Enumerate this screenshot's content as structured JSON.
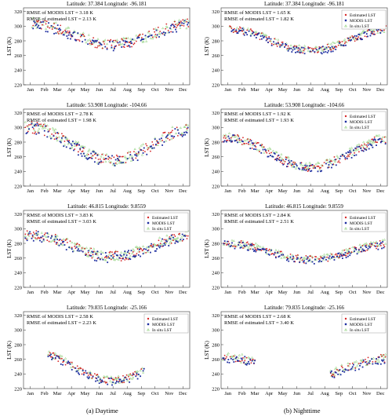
{
  "captions": {
    "left": "(a) Daytime",
    "right": "(b) Nighttime"
  },
  "legend": [
    "Estimated LST",
    "MODIS LST",
    "In situ LST"
  ],
  "colors": {
    "estimated": "#d62728",
    "modis": "#1f2fa0",
    "insitu": "#8fd17c"
  },
  "chart_data": [
    {
      "type": "scatter",
      "title": "Latitude: 37.384  Longitude: -96.181",
      "column": "Daytime",
      "ylabel": "LST (K)",
      "months": [
        "Jan",
        "Feb",
        "Mar",
        "Apr",
        "May",
        "Jun",
        "Jul",
        "Aug",
        "Sep",
        "Oct",
        "Nov",
        "Dec"
      ],
      "xlim": [
        1,
        365
      ],
      "ylim": [
        220,
        325
      ],
      "yticks": [
        220,
        240,
        260,
        280,
        300,
        320
      ],
      "annotations": [
        "RMSE of MODIS LST = 3.18 K",
        "RMSE of estimated LST = 2.13 K"
      ],
      "annotation_pos": "top-left",
      "legend_pos": "top-right",
      "legend_entries": [],
      "series": [
        {
          "name": "Estimated LST",
          "x": [],
          "y": []
        },
        {
          "name": "MODIS LST",
          "x": [],
          "y": []
        },
        {
          "name": "In situ LST",
          "x": [],
          "y": []
        }
      ],
      "doy_range": [
        20,
        362
      ],
      "trend": {
        "peak": 304,
        "amp": 29,
        "noise": 7
      }
    },
    {
      "type": "scatter",
      "title": "Latitude: 37.384  Longitude: -96.181",
      "column": "Nighttime",
      "ylabel": "LST (K)",
      "months": [
        "Jan",
        "Feb",
        "Mar",
        "Apr",
        "May",
        "Jun",
        "Jul",
        "Aug",
        "Sep",
        "Oct",
        "Nov",
        "Dec"
      ],
      "xlim": [
        1,
        365
      ],
      "ylim": [
        220,
        325
      ],
      "yticks": [
        220,
        240,
        260,
        280,
        300,
        320
      ],
      "annotations": [
        "RMSE of MODIS LST = 1.65 K",
        "RMSE of estimated LST = 1.82 K"
      ],
      "annotation_pos": "top-left",
      "legend_pos": "top-right",
      "legend_entries": [
        "Estimated LST",
        "MODIS LST",
        "In situ LST"
      ],
      "series": [
        {
          "name": "Estimated LST",
          "x": [],
          "y": []
        },
        {
          "name": "MODIS LST",
          "x": [],
          "y": []
        },
        {
          "name": "In situ LST",
          "x": [],
          "y": []
        }
      ],
      "doy_range": [
        20,
        362
      ],
      "trend": {
        "peak": 297,
        "amp": 30,
        "noise": 5
      }
    },
    {
      "type": "scatter",
      "title": "Latitude: 53.908  Longitude: -104.66",
      "column": "Daytime",
      "ylabel": "LST (K)",
      "months": [
        "Jan",
        "Feb",
        "Mar",
        "Apr",
        "May",
        "Jun",
        "Jul",
        "Aug",
        "Sep",
        "Oct",
        "Nov",
        "Dec"
      ],
      "xlim": [
        1,
        365
      ],
      "ylim": [
        220,
        325
      ],
      "yticks": [
        220,
        240,
        260,
        280,
        300,
        320
      ],
      "annotations": [
        "RMSE of MODIS LST = 2.78 K",
        "RMSE of estimated LST = 1.98 K"
      ],
      "annotation_pos": "top-left",
      "legend_pos": "top-right",
      "legend_entries": [],
      "series": [
        {
          "name": "Estimated LST",
          "x": [],
          "y": []
        },
        {
          "name": "MODIS LST",
          "x": [],
          "y": []
        },
        {
          "name": "In situ LST",
          "x": [],
          "y": []
        }
      ],
      "doy_range": [
        5,
        362
      ],
      "trend": {
        "peak": 300,
        "amp": 45,
        "noise": 8
      }
    },
    {
      "type": "scatter",
      "title": "Latitude: 53.908  Longitude: -104.66",
      "column": "Nighttime",
      "ylabel": "LST (K)",
      "months": [
        "Jan",
        "Feb",
        "Mar",
        "Apr",
        "May",
        "Jun",
        "Jul",
        "Aug",
        "Sep",
        "Oct",
        "Nov",
        "Dec"
      ],
      "xlim": [
        1,
        365
      ],
      "ylim": [
        220,
        325
      ],
      "yticks": [
        220,
        240,
        260,
        280,
        300,
        320
      ],
      "annotations": [
        "RMSE of MODIS LST = 1.92 K",
        "RMSE of estimated LST = 1.93 K"
      ],
      "annotation_pos": "top-left",
      "legend_pos": "top-right",
      "legend_entries": [
        "Estimated LST",
        "MODIS LST",
        "In situ LST"
      ],
      "series": [
        {
          "name": "Estimated LST",
          "x": [],
          "y": []
        },
        {
          "name": "MODIS LST",
          "x": [],
          "y": []
        },
        {
          "name": "In situ LST",
          "x": [],
          "y": []
        }
      ],
      "doy_range": [
        5,
        362
      ],
      "trend": {
        "peak": 286,
        "amp": 40,
        "noise": 6
      }
    },
    {
      "type": "scatter",
      "title": "Latitude: 46.815  Longitude: 9.8559",
      "column": "Daytime",
      "ylabel": "LST (K)",
      "months": [
        "Jan",
        "Feb",
        "Mar",
        "Apr",
        "May",
        "Jun",
        "Jul",
        "Aug",
        "Sep",
        "Oct",
        "Nov",
        "Dec"
      ],
      "xlim": [
        1,
        365
      ],
      "ylim": [
        220,
        325
      ],
      "yticks": [
        220,
        240,
        260,
        280,
        300,
        320
      ],
      "annotations": [
        "RMSE of MODIS LST = 3.83 K",
        "RMSE of estimated LST = 3.03 K"
      ],
      "annotation_pos": "top-left",
      "legend_pos": "top-right",
      "legend_entries": [
        "Estimated LST",
        "MODIS LST",
        "In situ LST"
      ],
      "series": [
        {
          "name": "Estimated LST",
          "x": [],
          "y": []
        },
        {
          "name": "MODIS LST",
          "x": [],
          "y": []
        },
        {
          "name": "In situ LST",
          "x": [],
          "y": []
        }
      ],
      "doy_range": [
        5,
        362
      ],
      "trend": {
        "peak": 292,
        "amp": 30,
        "noise": 7
      }
    },
    {
      "type": "scatter",
      "title": "Latitude: 46.815  Longitude: 9.8559",
      "column": "Nighttime",
      "ylabel": "LST (K)",
      "months": [
        "Jan",
        "Feb",
        "Mar",
        "Apr",
        "May",
        "Jun",
        "Jul",
        "Aug",
        "Sep",
        "Oct",
        "Nov",
        "Dec"
      ],
      "xlim": [
        1,
        365
      ],
      "ylim": [
        220,
        325
      ],
      "yticks": [
        220,
        240,
        260,
        280,
        300,
        320
      ],
      "annotations": [
        "RMSE of MODIS LST = 2.84 K",
        "RMSE of estimated LST = 2.51 K"
      ],
      "annotation_pos": "top-left",
      "legend_pos": "top-right",
      "legend_entries": [
        "Estimated LST",
        "MODIS LST",
        "In situ LST"
      ],
      "series": [
        {
          "name": "Estimated LST",
          "x": [],
          "y": []
        },
        {
          "name": "MODIS LST",
          "x": [],
          "y": []
        },
        {
          "name": "In situ LST",
          "x": [],
          "y": []
        }
      ],
      "doy_range": [
        5,
        362
      ],
      "trend": {
        "peak": 280,
        "amp": 22,
        "noise": 5
      }
    },
    {
      "type": "scatter",
      "title": "Latitude: 79.835  Longitude: -25.166",
      "column": "Daytime",
      "ylabel": "LST (K)",
      "months": [
        "Jan",
        "Feb",
        "Mar",
        "Apr",
        "May",
        "Jun",
        "Jul",
        "Aug",
        "Sep",
        "Oct",
        "Nov",
        "Dec"
      ],
      "xlim": [
        1,
        365
      ],
      "ylim": [
        220,
        325
      ],
      "yticks": [
        220,
        240,
        260,
        280,
        300,
        320
      ],
      "annotations": [
        "RMSE of MODIS LST = 2.58 K",
        "RMSE of estimated LST = 2.23 K"
      ],
      "annotation_pos": "top-left",
      "legend_pos": "top-right",
      "legend_entries": [
        "Estimated LST",
        "MODIS LST",
        "In situ LST"
      ],
      "series": [
        {
          "name": "Estimated LST",
          "x": [],
          "y": []
        },
        {
          "name": "MODIS LST",
          "x": [],
          "y": []
        },
        {
          "name": "In situ LST",
          "x": [],
          "y": []
        }
      ],
      "doy_range": [
        55,
        265
      ],
      "trend": {
        "peak": 273,
        "amp": 42,
        "noise": 5
      }
    },
    {
      "type": "scatter",
      "title": "Latitude: 79.835  Longitude: -25.166",
      "column": "Nighttime",
      "ylabel": "LST (K)",
      "months": [
        "Jan",
        "Feb",
        "Mar",
        "Apr",
        "May",
        "Jun",
        "Jul",
        "Aug",
        "Sep",
        "Oct",
        "Nov",
        "Dec"
      ],
      "xlim": [
        1,
        365
      ],
      "ylim": [
        220,
        325
      ],
      "yticks": [
        220,
        240,
        260,
        280,
        300,
        320
      ],
      "annotations": [
        "RMSE of MODIS LST = 2.68 K",
        "RMSE of estimated LST = 3.40 K"
      ],
      "annotation_pos": "top-left",
      "legend_pos": "top-right",
      "legend_entries": [
        "Estimated LST",
        "MODIS LST",
        "In situ LST"
      ],
      "series": [
        {
          "name": "Estimated LST",
          "x": [],
          "y": []
        },
        {
          "name": "MODIS LST",
          "x": [],
          "y": []
        },
        {
          "name": "In situ LST",
          "x": [],
          "y": []
        }
      ],
      "doy_range": [
        5,
        362
      ],
      "gap": [
        75,
        240
      ],
      "trend": {
        "peak": 262,
        "amp": 24,
        "noise": 6
      }
    }
  ]
}
